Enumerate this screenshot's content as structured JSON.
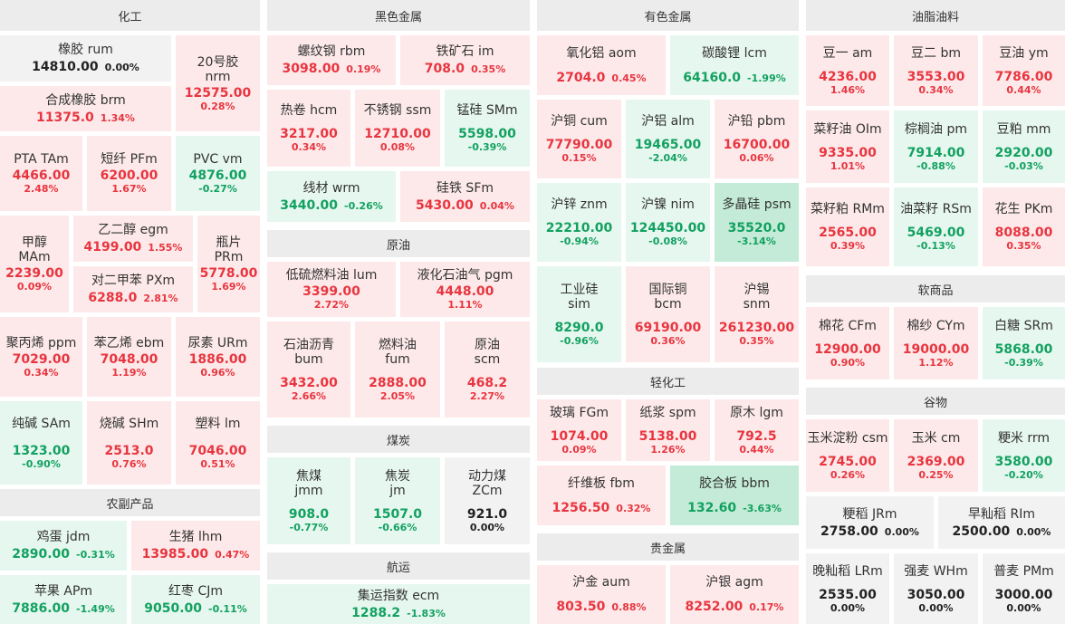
{
  "sections": {
    "chemicals": "化工",
    "ferrous": "黑色金属",
    "nonferrous": "有色金属",
    "oils": "油脂油料",
    "agri": "农副产品",
    "crude": "原油",
    "coal": "煤炭",
    "shipping": "航运",
    "light": "轻化工",
    "precious": "贵金属",
    "softs": "软商品",
    "grains": "谷物"
  },
  "t": {
    "rum": {
      "name": "橡胶  rum",
      "price": "14810.00",
      "pct": "0.00%"
    },
    "nrm": {
      "name1": "20号胶",
      "name2": "nrm",
      "price": "12575.00",
      "pct": "0.28%"
    },
    "brm": {
      "name": "合成橡胶  brm",
      "price": "11375.0",
      "pct": "1.34%"
    },
    "tam": {
      "name": "PTA  TAm",
      "price": "4466.00",
      "pct": "2.48%"
    },
    "pfm": {
      "name": "短纤  PFm",
      "price": "6200.00",
      "pct": "1.67%"
    },
    "vm": {
      "name": "PVC  vm",
      "price": "4876.00",
      "pct": "-0.27%"
    },
    "mam": {
      "name1": "甲醇",
      "name2": "MAm",
      "price": "2239.00",
      "pct": "0.09%"
    },
    "egm": {
      "name": "乙二醇  egm",
      "price": "4199.00",
      "pct": "1.55%"
    },
    "prm": {
      "name1": "瓶片",
      "name2": "PRm",
      "price": "5778.00",
      "pct": "1.69%"
    },
    "pxm": {
      "name": "对二甲苯  PXm",
      "price": "6288.0",
      "pct": "2.81%"
    },
    "ppm": {
      "name": "聚丙烯  ppm",
      "price": "7029.00",
      "pct": "0.34%"
    },
    "ebm": {
      "name": "苯乙烯  ebm",
      "price": "7048.00",
      "pct": "1.19%"
    },
    "urm": {
      "name": "尿素  URm",
      "price": "1886.00",
      "pct": "0.96%"
    },
    "sam": {
      "name": "纯碱  SAm",
      "price": "1323.00",
      "pct": "-0.90%"
    },
    "shm": {
      "name": "烧碱  SHm",
      "price": "2513.0",
      "pct": "0.76%"
    },
    "lm": {
      "name": "塑料  lm",
      "price": "7046.00",
      "pct": "0.51%"
    },
    "jdm": {
      "name": "鸡蛋  jdm",
      "price": "2890.00",
      "pct": "-0.31%"
    },
    "lhm": {
      "name": "生猪  lhm",
      "price": "13985.00",
      "pct": "0.47%"
    },
    "apm": {
      "name": "苹果  APm",
      "price": "7886.00",
      "pct": "-1.49%"
    },
    "cjm": {
      "name": "红枣  CJm",
      "price": "9050.00",
      "pct": "-0.11%"
    },
    "rbm": {
      "name": "螺纹钢  rbm",
      "price": "3098.00",
      "pct": "0.19%"
    },
    "im": {
      "name": "铁矿石  im",
      "price": "708.0",
      "pct": "0.35%"
    },
    "hcm": {
      "name": "热卷  hcm",
      "price": "3217.00",
      "pct": "0.34%"
    },
    "ssm": {
      "name": "不锈钢  ssm",
      "price": "12710.00",
      "pct": "0.08%"
    },
    "smm": {
      "name": "锰硅  SMm",
      "price": "5598.00",
      "pct": "-0.39%"
    },
    "wrm": {
      "name": "线材  wrm",
      "price": "3440.00",
      "pct": "-0.26%"
    },
    "sfm": {
      "name": "硅铁  SFm",
      "price": "5430.00",
      "pct": "0.04%"
    },
    "lum": {
      "name": "低硫燃料油  lum",
      "price": "3399.00",
      "pct": "2.72%"
    },
    "pgm": {
      "name": "液化石油气  pgm",
      "price": "4448.00",
      "pct": "1.11%"
    },
    "bum": {
      "name1": "石油沥青",
      "name2": "bum",
      "price": "3432.00",
      "pct": "2.66%"
    },
    "fum": {
      "name1": "燃料油",
      "name2": "fum",
      "price": "2888.00",
      "pct": "2.05%"
    },
    "scm": {
      "name1": "原油",
      "name2": "scm",
      "price": "468.2",
      "pct": "2.27%"
    },
    "jmm": {
      "name1": "焦煤",
      "name2": "jmm",
      "price": "908.0",
      "pct": "-0.77%"
    },
    "jm": {
      "name1": "焦炭",
      "name2": "jm",
      "price": "1507.0",
      "pct": "-0.66%"
    },
    "zcm": {
      "name1": "动力煤",
      "name2": "ZCm",
      "price": "921.0",
      "pct": "0.00%"
    },
    "ecm": {
      "name": "集运指数  ecm",
      "price": "1288.2",
      "pct": "-1.83%"
    },
    "aom": {
      "name": "氧化铝  aom",
      "price": "2704.0",
      "pct": "0.45%"
    },
    "lcm": {
      "name": "碳酸锂  lcm",
      "price": "64160.0",
      "pct": "-1.99%"
    },
    "cum": {
      "name": "沪铜  cum",
      "price": "77790.00",
      "pct": "0.15%"
    },
    "alm": {
      "name": "沪铝  alm",
      "price": "19465.00",
      "pct": "-2.04%"
    },
    "pbm": {
      "name": "沪铅  pbm",
      "price": "16700.00",
      "pct": "0.06%"
    },
    "znm": {
      "name": "沪锌  znm",
      "price": "22210.00",
      "pct": "-0.94%"
    },
    "nim": {
      "name": "沪镍  nim",
      "price": "124450.00",
      "pct": "-0.08%"
    },
    "psm": {
      "name": "多晶硅  psm",
      "price": "35520.0",
      "pct": "-3.14%"
    },
    "sim": {
      "name1": "工业硅",
      "name2": "sim",
      "price": "8290.0",
      "pct": "-0.96%"
    },
    "bcm": {
      "name1": "国际铜",
      "name2": "bcm",
      "price": "69190.00",
      "pct": "0.36%"
    },
    "snm": {
      "name1": "沪锡",
      "name2": "snm",
      "price": "261230.00",
      "pct": "0.35%"
    },
    "fgm": {
      "name": "玻璃  FGm",
      "price": "1074.00",
      "pct": "0.09%"
    },
    "spm": {
      "name": "纸浆  spm",
      "price": "5138.00",
      "pct": "1.26%"
    },
    "lgm": {
      "name": "原木  lgm",
      "price": "792.5",
      "pct": "0.44%"
    },
    "fbm": {
      "name": "纤维板  fbm",
      "price": "1256.50",
      "pct": "0.32%"
    },
    "bbm": {
      "name": "胶合板  bbm",
      "price": "132.60",
      "pct": "-3.63%"
    },
    "aum": {
      "name": "沪金  aum",
      "price": "803.50",
      "pct": "0.88%"
    },
    "agm": {
      "name": "沪银  agm",
      "price": "8252.00",
      "pct": "0.17%"
    },
    "am": {
      "name": "豆一  am",
      "price": "4236.00",
      "pct": "1.46%"
    },
    "bm": {
      "name": "豆二  bm",
      "price": "3553.00",
      "pct": "0.34%"
    },
    "ym": {
      "name": "豆油  ym",
      "price": "7786.00",
      "pct": "0.44%"
    },
    "olm": {
      "name": "菜籽油  OIm",
      "price": "9335.00",
      "pct": "1.01%"
    },
    "pm": {
      "name": "棕榈油  pm",
      "price": "7914.00",
      "pct": "-0.88%"
    },
    "mm": {
      "name": "豆粕  mm",
      "price": "2920.00",
      "pct": "-0.03%"
    },
    "rmm": {
      "name": "菜籽粕  RMm",
      "price": "2565.00",
      "pct": "0.39%"
    },
    "rsm": {
      "name": "油菜籽  RSm",
      "price": "5469.00",
      "pct": "-0.13%"
    },
    "pkm": {
      "name": "花生  PKm",
      "price": "8088.00",
      "pct": "0.35%"
    },
    "cfm": {
      "name": "棉花  CFm",
      "price": "12900.00",
      "pct": "0.90%"
    },
    "cym": {
      "name": "棉纱  CYm",
      "price": "19000.00",
      "pct": "1.12%"
    },
    "srm": {
      "name": "白糖  SRm",
      "price": "5868.00",
      "pct": "-0.39%"
    },
    "csm": {
      "name": "玉米淀粉  csm",
      "price": "2745.00",
      "pct": "0.26%"
    },
    "cm": {
      "name": "玉米  cm",
      "price": "2369.00",
      "pct": "0.25%"
    },
    "rrm": {
      "name": "粳米  rrm",
      "price": "3580.00",
      "pct": "-0.20%"
    },
    "jrm": {
      "name": "粳稻  JRm",
      "price": "2758.00",
      "pct": "0.00%"
    },
    "rim": {
      "name": "早籼稻  RIm",
      "price": "2500.00",
      "pct": "0.00%"
    },
    "lrm": {
      "name": "晚籼稻  LRm",
      "price": "2535.00",
      "pct": "0.00%"
    },
    "whm": {
      "name": "强麦  WHm",
      "price": "3050.00",
      "pct": "0.00%"
    },
    "pmm": {
      "name": "普麦  PMm",
      "price": "3000.00",
      "pct": "0.00%"
    }
  }
}
